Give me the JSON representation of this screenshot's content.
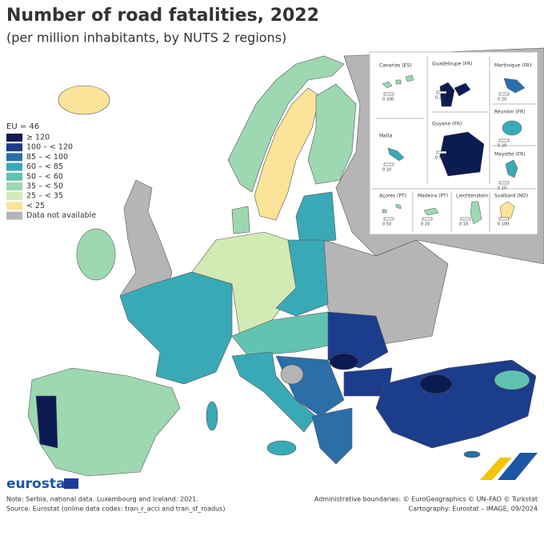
{
  "title": "Number of road fatalities, 2022",
  "subtitle": "(per million inhabitants, by NUTS 2 regions)",
  "legend": {
    "title": "EU = 46",
    "items": [
      {
        "label": "≥ 120",
        "color": "#0d1b53"
      },
      {
        "label": "100 – < 120",
        "color": "#1c3c8c"
      },
      {
        "label": "85 – < 100",
        "color": "#2b6ea8"
      },
      {
        "label": "60 – < 85",
        "color": "#3aa9b6"
      },
      {
        "label": "50 – < 60",
        "color": "#62c3b2"
      },
      {
        "label": "35 – < 50",
        "color": "#9dd8b1"
      },
      {
        "label": "25 – < 35",
        "color": "#d2eab3"
      },
      {
        "label": "< 25",
        "color": "#fbe39a"
      },
      {
        "label": "Data not available",
        "color": "#b5b5b5"
      }
    ]
  },
  "insets": [
    {
      "label": "Canarias (ES)",
      "scale": "0 100"
    },
    {
      "label": "Guadeloupe (FR)",
      "scale": "0 20"
    },
    {
      "label": "Martinique (FR)",
      "scale": "0 20"
    },
    {
      "label": "Réunion (FR)",
      "scale": "0 20"
    },
    {
      "label": "Malta",
      "scale": "0 10"
    },
    {
      "label": "Guyane (FR)",
      "scale": "0 50"
    },
    {
      "label": "Mayotte (FR)",
      "scale": "0 10"
    },
    {
      "label": "Açores (PT)",
      "scale": "0 50"
    },
    {
      "label": "Madeira (PT)",
      "scale": "0 20"
    },
    {
      "label": "Liechtenstein",
      "scale": "0 10"
    },
    {
      "label": "Svalbard (NO)",
      "scale": "0 100"
    }
  ],
  "logo": "eurostat",
  "notes": [
    "Note: Serbia, national data. Luxembourg and Iceland: 2021.",
    "Source: Eurostat (online data codes: tran_r_acci and tran_sf_roadus)"
  ],
  "credits": [
    "Administrative boundaries: © EuroGeographics © UN–FAO © Turkstat",
    "Cartography: Eurostat – IMAGE, 09/2024"
  ]
}
